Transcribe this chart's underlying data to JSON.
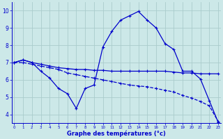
{
  "title": "Graphe des températures (°c)",
  "bg_color": "#cce8e8",
  "grid_color": "#aacccc",
  "line_color": "#0000cc",
  "x_ticks": [
    0,
    1,
    2,
    3,
    4,
    5,
    6,
    7,
    8,
    9,
    10,
    11,
    12,
    13,
    14,
    15,
    16,
    17,
    18,
    19,
    20,
    21,
    22,
    23
  ],
  "y_ticks": [
    4,
    5,
    6,
    7,
    8,
    9,
    10
  ],
  "xlim": [
    -0.3,
    23.3
  ],
  "ylim": [
    3.5,
    10.5
  ],
  "series1_x": [
    0,
    1,
    2,
    3,
    4,
    5,
    6,
    7,
    8,
    9,
    10,
    11,
    12,
    13,
    14,
    15,
    16,
    17,
    18,
    19,
    20,
    21,
    22,
    23
  ],
  "series1_y": [
    7.0,
    7.15,
    7.0,
    6.9,
    6.8,
    6.7,
    6.65,
    6.6,
    6.6,
    6.55,
    6.55,
    6.5,
    6.5,
    6.5,
    6.5,
    6.5,
    6.5,
    6.5,
    6.45,
    6.4,
    6.4,
    6.35,
    6.35,
    6.35
  ],
  "series2_x": [
    0,
    1,
    2,
    3,
    4,
    5,
    6,
    7,
    8,
    9,
    10,
    11,
    12,
    13,
    14,
    15,
    16,
    17,
    18,
    19,
    20,
    21,
    22,
    23
  ],
  "series2_y": [
    7.0,
    7.15,
    7.0,
    6.5,
    6.1,
    5.5,
    5.2,
    4.35,
    5.5,
    5.7,
    7.9,
    8.8,
    9.45,
    9.7,
    9.95,
    9.45,
    9.0,
    8.1,
    7.75,
    6.5,
    6.5,
    6.05,
    4.8,
    3.55
  ],
  "series3_x": [
    0,
    1,
    2,
    3,
    4,
    5,
    6,
    7,
    8,
    9,
    10,
    11,
    12,
    13,
    14,
    15,
    16,
    17,
    18,
    19,
    20,
    21,
    22,
    23
  ],
  "series3_y": [
    7.0,
    7.0,
    6.9,
    6.8,
    6.7,
    6.6,
    6.4,
    6.3,
    6.2,
    6.1,
    6.0,
    5.9,
    5.8,
    5.7,
    5.65,
    5.6,
    5.5,
    5.4,
    5.3,
    5.1,
    4.95,
    4.75,
    4.5,
    3.6
  ]
}
